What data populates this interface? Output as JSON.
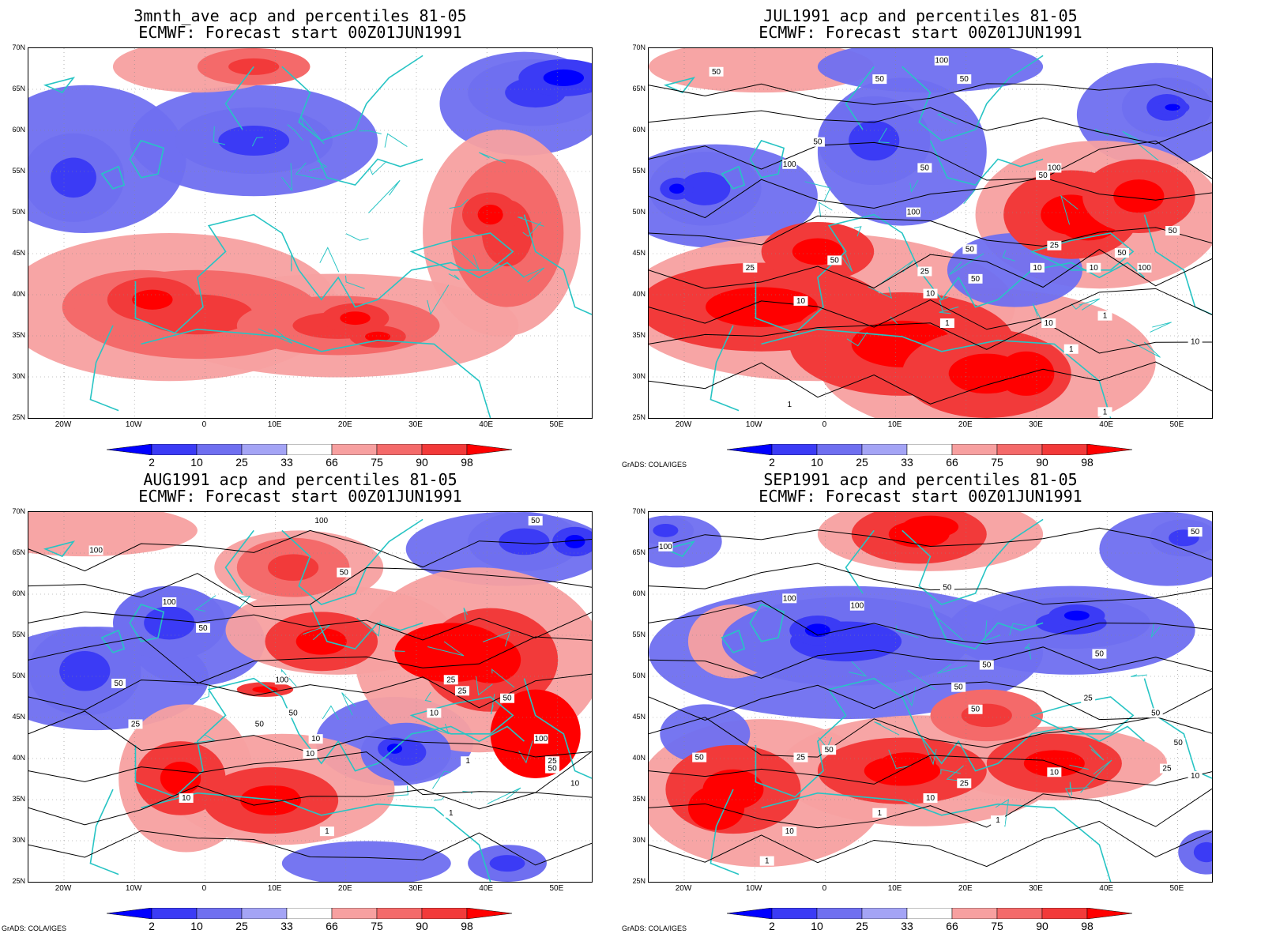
{
  "panels": [
    {
      "title1": "3mnth_ave acp and percentiles 81-05",
      "title2": "ECMWF: Forecast start 00Z01JUN1991",
      "credit": "",
      "contours": []
    },
    {
      "title1": "JUL1991 acp and percentiles 81-05",
      "title2": "ECMWF: Forecast start 00Z01JUN1991",
      "credit": "GrADS: COLA/IGES",
      "contours": [
        "50",
        "50",
        "100",
        "50",
        "50",
        "50",
        "100",
        "50",
        "100",
        "50",
        "25",
        "50",
        "10",
        "25",
        "50",
        "10",
        "10",
        "100",
        "10",
        "1",
        "1",
        "1",
        "1",
        "25",
        "10",
        "50",
        "100",
        "50",
        "10",
        "1"
      ]
    },
    {
      "title1": "AUG1991 acp and percentiles 81-05",
      "title2": "ECMWF: Forecast start 00Z01JUN1991",
      "credit": "GrADS: COLA/IGES",
      "contours": [
        "100",
        "100",
        "50",
        "100",
        "50",
        "50",
        "25",
        "50",
        "10",
        "10",
        "100",
        "50",
        "25",
        "10",
        "50",
        "10",
        "25",
        "100",
        "50",
        "25",
        "10",
        "1",
        "1",
        "1",
        "50",
        "10"
      ]
    },
    {
      "title1": "SEP1991 acp and percentiles 81-05",
      "title2": "ECMWF: Forecast start 00Z01JUN1991",
      "credit": "GrADS: COLA/IGES",
      "contours": [
        "100",
        "50",
        "100",
        "100",
        "50",
        "50",
        "50",
        "50",
        "50",
        "50",
        "50",
        "25",
        "25",
        "10",
        "1",
        "1",
        "10",
        "10",
        "1",
        "25",
        "50",
        "50",
        "25",
        "10"
      ]
    }
  ],
  "lat_labels": [
    "70N",
    "65N",
    "60N",
    "55N",
    "50N",
    "45N",
    "40N",
    "35N",
    "30N",
    "25N"
  ],
  "lon_labels": [
    "20W",
    "10W",
    "0",
    "10E",
    "20E",
    "30E",
    "40E",
    "50E"
  ],
  "colorbar_labels": [
    "2",
    "10",
    "25",
    "33",
    "66",
    "75",
    "90",
    "98"
  ],
  "colorbar_colors": [
    "#0000ff",
    "#3b3bf5",
    "#6f6ff0",
    "#a4a4f5",
    "#ffffff",
    "#f7a0a0",
    "#f46a6a",
    "#f23a3a",
    "#ff0000"
  ],
  "colors": {
    "coast": "#27c4c4",
    "contour": "#000000"
  }
}
